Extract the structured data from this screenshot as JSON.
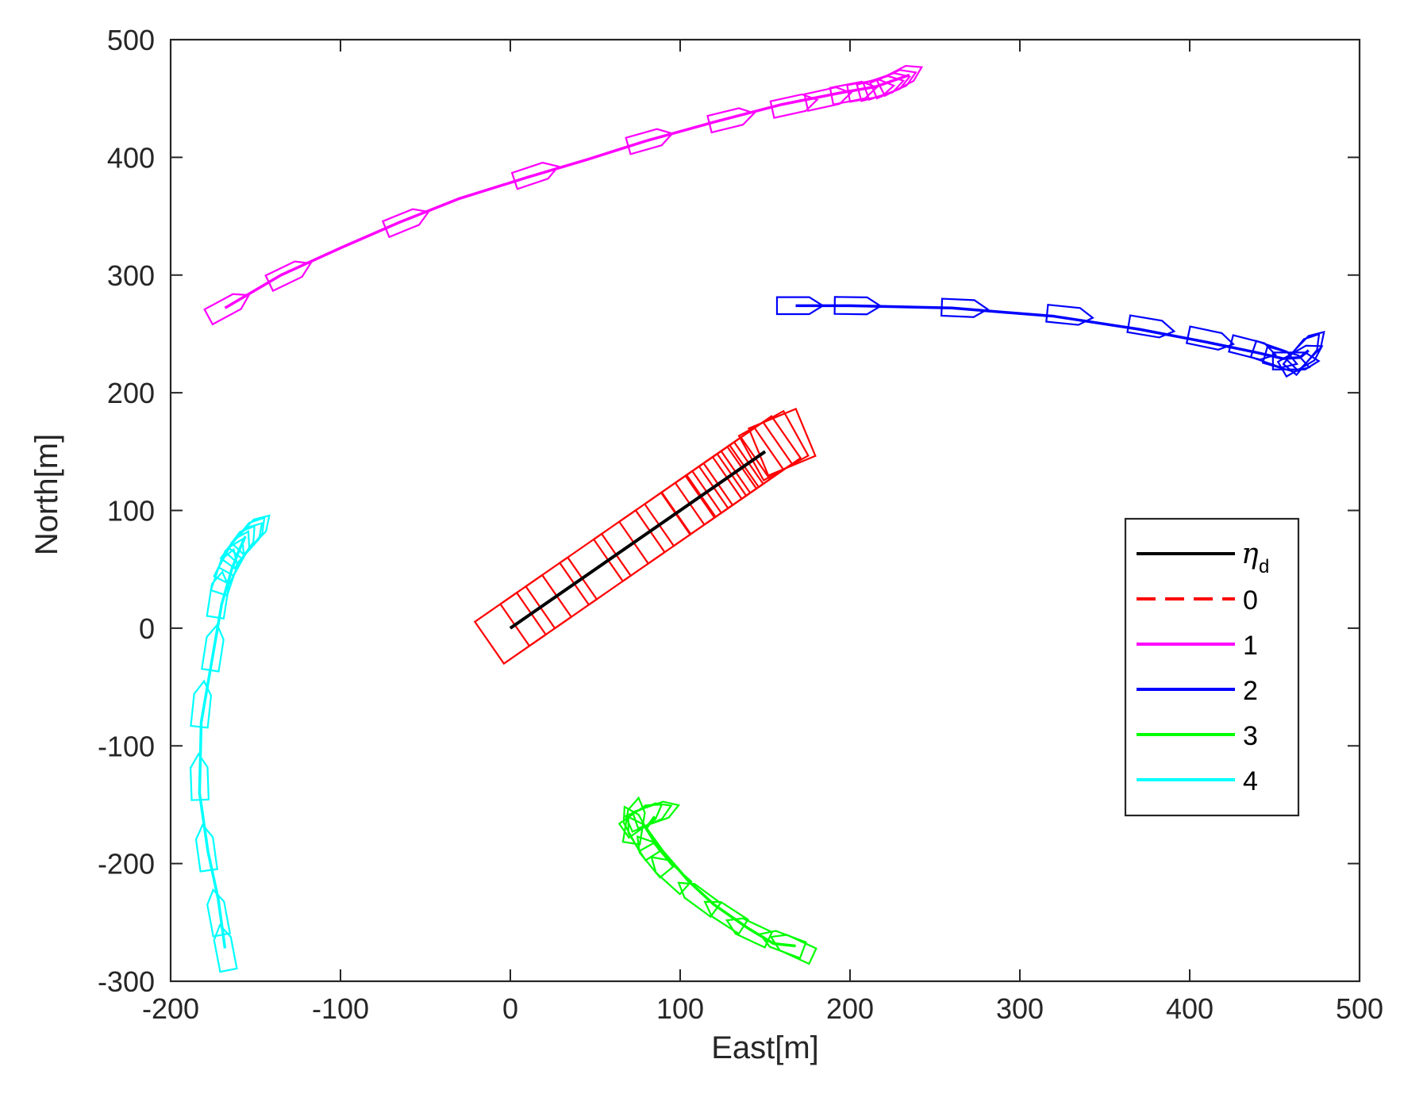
{
  "chart_data": {
    "type": "line",
    "xlabel": "East[m]",
    "ylabel": "North[m]",
    "xlim": [
      -200,
      500
    ],
    "ylim": [
      -300,
      500
    ],
    "xticks": [
      -200,
      -100,
      0,
      100,
      200,
      300,
      400,
      500
    ],
    "yticks": [
      -300,
      -200,
      -100,
      0,
      100,
      200,
      300,
      400,
      500
    ],
    "grid": false,
    "legend_position": "right",
    "legend": {
      "eta_symbol": "η",
      "eta_subscript": "d"
    },
    "series": [
      {
        "name": "η_d",
        "color": "#000000",
        "style": "solid",
        "x": [
          0,
          150
        ],
        "y": [
          0,
          150
        ]
      },
      {
        "name": "0",
        "color": "#ff0000",
        "style": "dashed",
        "x": [
          0,
          150
        ],
        "y": [
          0,
          150
        ],
        "markers": "square",
        "marker_points": [
          [
            0,
            0
          ],
          [
            15,
            15
          ],
          [
            30,
            30
          ],
          [
            50,
            50
          ],
          [
            70,
            70
          ],
          [
            85,
            85
          ],
          [
            100,
            100
          ],
          [
            110,
            110
          ],
          [
            118,
            118
          ],
          [
            124,
            124
          ],
          [
            128,
            128
          ],
          [
            132,
            132
          ],
          [
            140,
            140
          ],
          [
            145,
            145
          ],
          [
            150,
            150
          ],
          [
            155,
            155
          ],
          [
            160,
            158
          ]
        ]
      },
      {
        "name": "1",
        "color": "#ff00ff",
        "style": "solid",
        "x": [
          -168,
          -135,
          -100,
          -65,
          -30,
          10,
          45,
          80,
          120,
          160,
          195,
          215,
          225,
          235
        ],
        "y": [
          272,
          300,
          323,
          345,
          365,
          383,
          398,
          414,
          430,
          445,
          455,
          460,
          465,
          470
        ],
        "markers": "ship",
        "marker_points": [
          [
            -168,
            272
          ],
          [
            -132,
            300
          ],
          [
            -63,
            345
          ],
          [
            13,
            385
          ],
          [
            80,
            414
          ],
          [
            128,
            432
          ],
          [
            165,
            444
          ],
          [
            185,
            450
          ],
          [
            200,
            455
          ],
          [
            210,
            457
          ],
          [
            216,
            459
          ],
          [
            220,
            461
          ],
          [
            224,
            463
          ],
          [
            228,
            466
          ]
        ]
      },
      {
        "name": "2",
        "color": "#0000ff",
        "style": "solid",
        "x": [
          168,
          200,
          260,
          320,
          370,
          410,
          440,
          455,
          465,
          470
        ],
        "y": [
          274,
          274,
          272,
          265,
          254,
          243,
          234,
          229,
          230,
          236
        ],
        "markers": "ship",
        "marker_points": [
          [
            168,
            274
          ],
          [
            202,
            274
          ],
          [
            265,
            272
          ],
          [
            327,
            266
          ],
          [
            375,
            256
          ],
          [
            410,
            246
          ],
          [
            435,
            238
          ],
          [
            448,
            232
          ],
          [
            455,
            228
          ],
          [
            460,
            227
          ],
          [
            464,
            228
          ],
          [
            466,
            232
          ],
          [
            468,
            235
          ]
        ]
      },
      {
        "name": "3",
        "color": "#00ff00",
        "style": "solid",
        "x": [
          85,
          80,
          90,
          105,
          120,
          140,
          155,
          168
        ],
        "y": [
          -160,
          -170,
          -190,
          -215,
          -235,
          -255,
          -268,
          -270
        ],
        "markers": "ship",
        "marker_points": [
          [
            168,
            -272
          ],
          [
            162,
            -268
          ],
          [
            142,
            -258
          ],
          [
            128,
            -245
          ],
          [
            112,
            -230
          ],
          [
            95,
            -210
          ],
          [
            85,
            -195
          ],
          [
            78,
            -180
          ],
          [
            75,
            -172
          ],
          [
            73,
            -167
          ],
          [
            76,
            -163
          ],
          [
            80,
            -160
          ],
          [
            84,
            -158
          ]
        ]
      },
      {
        "name": "4",
        "color": "#00ffff",
        "style": "solid",
        "x": [
          -168,
          -172,
          -178,
          -183,
          -182,
          -176,
          -170,
          -164,
          -160,
          -156
        ],
        "y": [
          -272,
          -230,
          -190,
          -140,
          -80,
          -30,
          20,
          50,
          65,
          78
        ],
        "markers": "ship",
        "marker_points": [
          [
            -168,
            -275
          ],
          [
            -172,
            -245
          ],
          [
            -179,
            -190
          ],
          [
            -183,
            -130
          ],
          [
            -182,
            -68
          ],
          [
            -175,
            -20
          ],
          [
            -172,
            25
          ],
          [
            -168,
            45
          ],
          [
            -165,
            55
          ],
          [
            -162,
            62
          ],
          [
            -160,
            68
          ],
          [
            -157,
            72
          ],
          [
            -155,
            76
          ],
          [
            -153,
            79
          ]
        ]
      }
    ]
  }
}
